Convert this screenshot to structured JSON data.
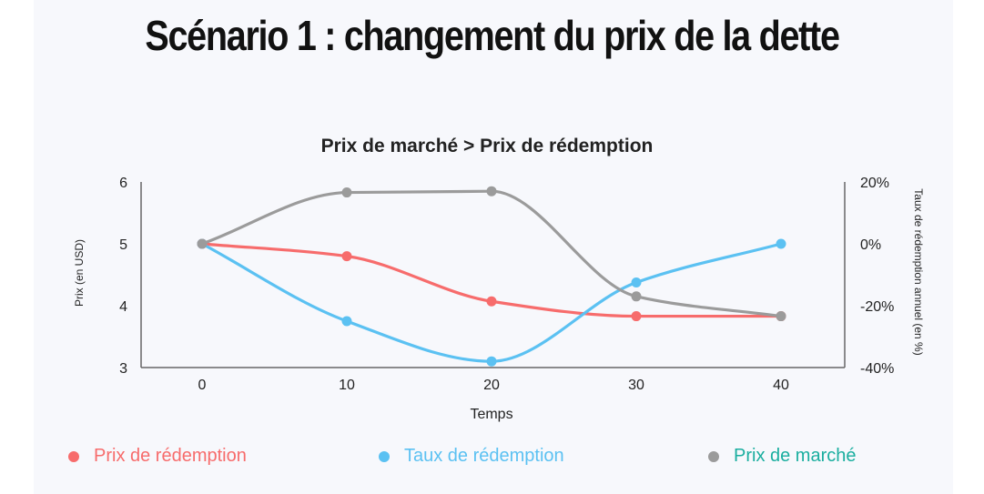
{
  "page_title": "Scénario 1 : changement du prix de la dette",
  "chart_data": {
    "type": "line",
    "title": "Prix de marché > Prix de rédemption",
    "xlabel": "Temps",
    "ylabel": "Prix (en USD)",
    "y2label": "Taux de rédemption annuel (en %)",
    "x": [
      0,
      10,
      20,
      30,
      40
    ],
    "ylim": [
      3,
      6
    ],
    "y2lim": [
      -40,
      20
    ],
    "yticks": [
      "3",
      "4",
      "5",
      "6"
    ],
    "y2ticks": [
      "-40%",
      "-20%",
      "0%",
      "20%"
    ],
    "xticks": [
      "0",
      "10",
      "20",
      "30",
      "40"
    ],
    "smooth": true,
    "grid": false,
    "legend_position": "bottom",
    "series": [
      {
        "name": "Prix de rédemption",
        "axis": "left",
        "color": "#f76c6c",
        "label_color": "#f76c6c",
        "values": [
          5.0,
          4.8,
          4.07,
          3.83,
          3.83
        ]
      },
      {
        "name": "Taux de rédemption",
        "axis": "right",
        "color": "#5bc1f2",
        "label_color": "#5bc1f2",
        "values": [
          0,
          -25,
          -38,
          -12.5,
          0
        ]
      },
      {
        "name": "Prix de marché",
        "axis": "left",
        "color": "#9b9b9b",
        "label_color": "#1aae9f",
        "values": [
          5.0,
          5.83,
          5.85,
          4.15,
          3.83
        ]
      }
    ]
  }
}
